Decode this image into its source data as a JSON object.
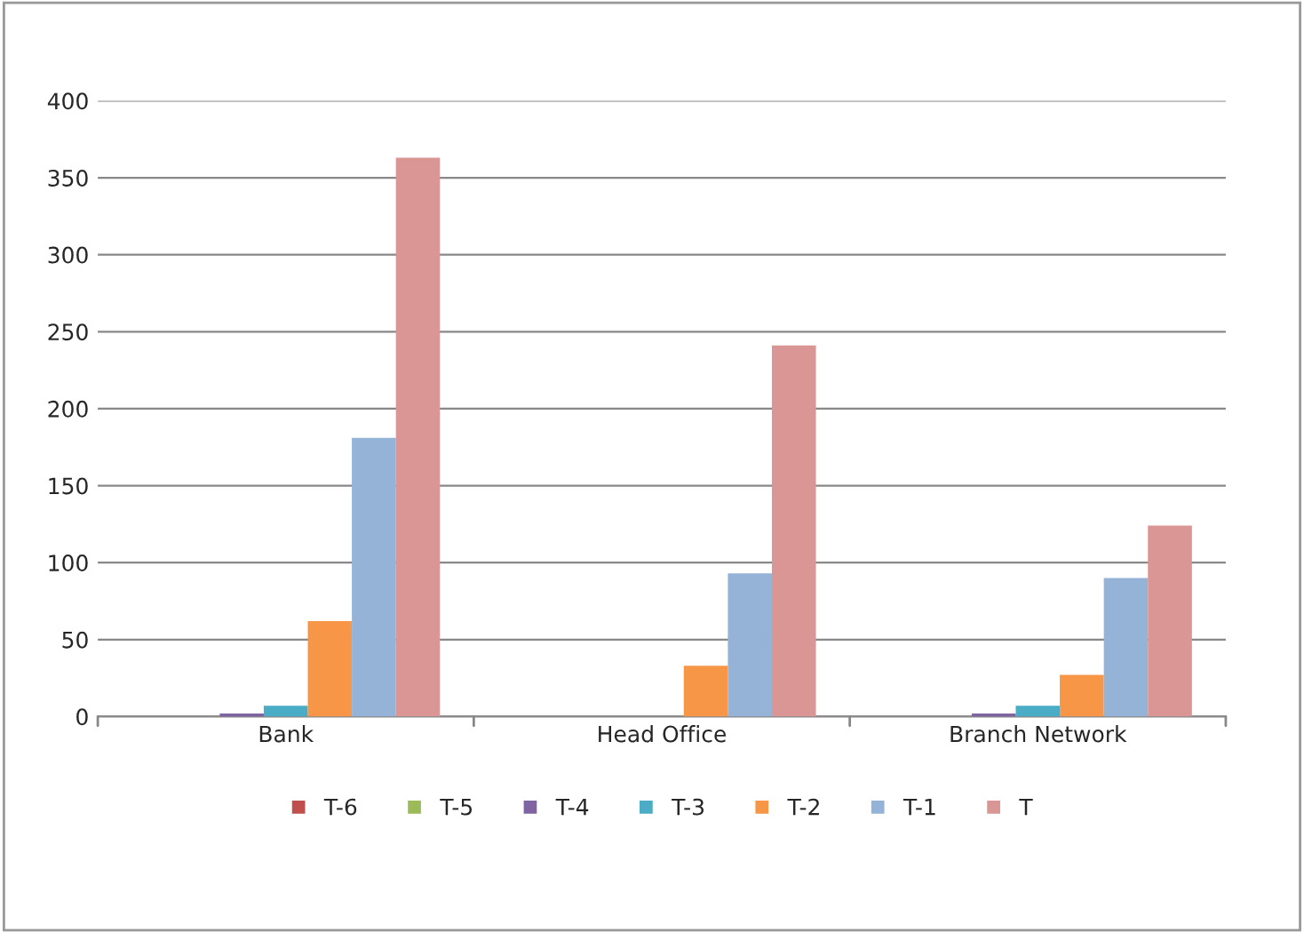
{
  "chart_data": {
    "type": "bar",
    "categories": [
      "Bank",
      "Head Office",
      "Branch Network"
    ],
    "series": [
      {
        "name": "T-6",
        "color": "#c0504d",
        "values": [
          0,
          0,
          0
        ]
      },
      {
        "name": "T-5",
        "color": "#9bbb59",
        "values": [
          0,
          0,
          0
        ]
      },
      {
        "name": "T-4",
        "color": "#8064a2",
        "values": [
          2,
          0,
          2
        ]
      },
      {
        "name": "T-3",
        "color": "#4bacc6",
        "values": [
          7,
          0,
          7
        ]
      },
      {
        "name": "T-2",
        "color": "#f79646",
        "values": [
          62,
          33,
          27
        ]
      },
      {
        "name": "T-1",
        "color": "#95b3d7",
        "values": [
          181,
          93,
          90
        ]
      },
      {
        "name": "T",
        "color": "#d99694",
        "values": [
          363,
          241,
          124
        ]
      }
    ],
    "ylim": [
      0,
      400
    ],
    "yticks": [
      0,
      50,
      100,
      150,
      200,
      250,
      300,
      350,
      400
    ],
    "grid": "y",
    "legend": "bottom"
  }
}
